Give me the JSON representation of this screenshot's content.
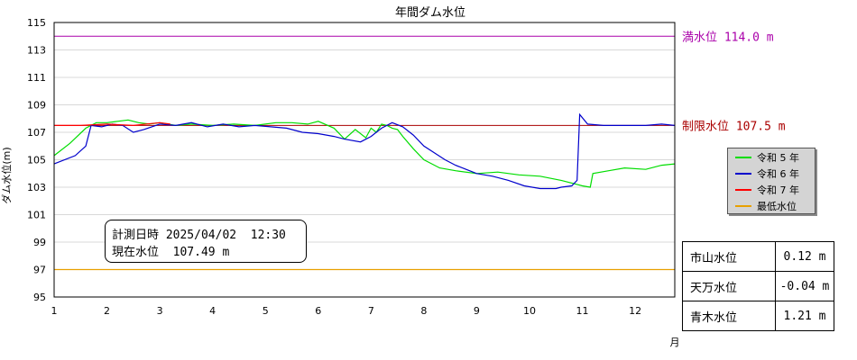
{
  "chart_data": {
    "type": "line",
    "title": "年間ダム水位",
    "ylabel": "ダム水位(m)",
    "xlabel": "月",
    "xlim": [
      1,
      12.75
    ],
    "ylim": [
      95,
      115
    ],
    "yticks": [
      95,
      97,
      99,
      101,
      103,
      105,
      107,
      109,
      111,
      113,
      115
    ],
    "xticks": [
      1,
      2,
      3,
      4,
      5,
      6,
      7,
      8,
      9,
      10,
      11,
      12
    ],
    "grid": true,
    "series": [
      {
        "name": "令和 5 年",
        "color": "#00dd00",
        "points": [
          [
            1.0,
            105.3
          ],
          [
            1.3,
            106.2
          ],
          [
            1.6,
            107.3
          ],
          [
            1.8,
            107.7
          ],
          [
            2.0,
            107.7
          ],
          [
            2.2,
            107.8
          ],
          [
            2.4,
            107.9
          ],
          [
            2.6,
            107.7
          ],
          [
            2.8,
            107.6
          ],
          [
            3.0,
            107.7
          ],
          [
            3.3,
            107.5
          ],
          [
            3.6,
            107.6
          ],
          [
            4.0,
            107.5
          ],
          [
            4.4,
            107.6
          ],
          [
            4.8,
            107.5
          ],
          [
            5.2,
            107.7
          ],
          [
            5.5,
            107.7
          ],
          [
            5.8,
            107.6
          ],
          [
            6.0,
            107.8
          ],
          [
            6.3,
            107.3
          ],
          [
            6.5,
            106.5
          ],
          [
            6.7,
            107.2
          ],
          [
            6.9,
            106.6
          ],
          [
            7.0,
            107.3
          ],
          [
            7.1,
            107.0
          ],
          [
            7.2,
            107.6
          ],
          [
            7.3,
            107.5
          ],
          [
            7.4,
            107.3
          ],
          [
            7.5,
            107.2
          ],
          [
            7.6,
            106.7
          ],
          [
            7.8,
            105.8
          ],
          [
            8.0,
            105.0
          ],
          [
            8.3,
            104.4
          ],
          [
            8.6,
            104.2
          ],
          [
            9.0,
            104.0
          ],
          [
            9.4,
            104.1
          ],
          [
            9.8,
            103.9
          ],
          [
            10.2,
            103.8
          ],
          [
            10.6,
            103.5
          ],
          [
            10.9,
            103.2
          ],
          [
            11.0,
            103.1
          ],
          [
            11.15,
            103.0
          ],
          [
            11.2,
            104.0
          ],
          [
            11.5,
            104.2
          ],
          [
            11.8,
            104.4
          ],
          [
            12.2,
            104.3
          ],
          [
            12.5,
            104.6
          ],
          [
            12.75,
            104.7
          ]
        ]
      },
      {
        "name": "令和 6 年",
        "color": "#0000cc",
        "points": [
          [
            1.0,
            104.7
          ],
          [
            1.4,
            105.3
          ],
          [
            1.6,
            106.0
          ],
          [
            1.7,
            107.5
          ],
          [
            1.9,
            107.4
          ],
          [
            2.1,
            107.6
          ],
          [
            2.3,
            107.5
          ],
          [
            2.5,
            107.0
          ],
          [
            2.7,
            107.2
          ],
          [
            3.0,
            107.6
          ],
          [
            3.3,
            107.5
          ],
          [
            3.6,
            107.7
          ],
          [
            3.9,
            107.4
          ],
          [
            4.2,
            107.6
          ],
          [
            4.5,
            107.4
          ],
          [
            4.8,
            107.5
          ],
          [
            5.1,
            107.4
          ],
          [
            5.4,
            107.3
          ],
          [
            5.7,
            107.0
          ],
          [
            6.0,
            106.9
          ],
          [
            6.3,
            106.7
          ],
          [
            6.5,
            106.5
          ],
          [
            6.8,
            106.3
          ],
          [
            7.0,
            106.7
          ],
          [
            7.2,
            107.3
          ],
          [
            7.4,
            107.7
          ],
          [
            7.6,
            107.4
          ],
          [
            7.8,
            106.8
          ],
          [
            8.0,
            106.0
          ],
          [
            8.2,
            105.5
          ],
          [
            8.4,
            105.0
          ],
          [
            8.6,
            104.6
          ],
          [
            8.8,
            104.3
          ],
          [
            9.0,
            104.0
          ],
          [
            9.3,
            103.8
          ],
          [
            9.6,
            103.5
          ],
          [
            9.9,
            103.1
          ],
          [
            10.2,
            102.9
          ],
          [
            10.5,
            102.9
          ],
          [
            10.6,
            103.0
          ],
          [
            10.8,
            103.1
          ],
          [
            10.9,
            103.5
          ],
          [
            10.95,
            108.3
          ],
          [
            11.1,
            107.6
          ],
          [
            11.4,
            107.5
          ],
          [
            11.8,
            107.5
          ],
          [
            12.2,
            107.5
          ],
          [
            12.5,
            107.6
          ],
          [
            12.75,
            107.5
          ]
        ]
      },
      {
        "name": "令和 7 年",
        "color": "#ff0000",
        "points": [
          [
            1.0,
            107.5
          ],
          [
            1.5,
            107.5
          ],
          [
            2.0,
            107.6
          ],
          [
            2.5,
            107.5
          ],
          [
            3.0,
            107.7
          ],
          [
            3.2,
            107.6
          ]
        ]
      },
      {
        "name": "最低水位",
        "color": "#e8a000",
        "points": [
          [
            1.0,
            97.0
          ],
          [
            12.75,
            97.0
          ]
        ]
      }
    ],
    "reference_lines": [
      {
        "label": "満水位 114.0 m",
        "value": 114.0,
        "color": "#aa00aa"
      },
      {
        "label": "制限水位 107.5 m",
        "value": 107.5,
        "color": "#aa0000"
      }
    ]
  },
  "info": {
    "line1": "計測日時 2025/04/02  12:30",
    "line2": "現在水位  107.49 m"
  },
  "side_table": [
    {
      "label": "市山水位",
      "value": "0.12 m"
    },
    {
      "label": "天万水位",
      "value": "-0.04 m"
    },
    {
      "label": "青木水位",
      "value": "1.21 m"
    }
  ]
}
